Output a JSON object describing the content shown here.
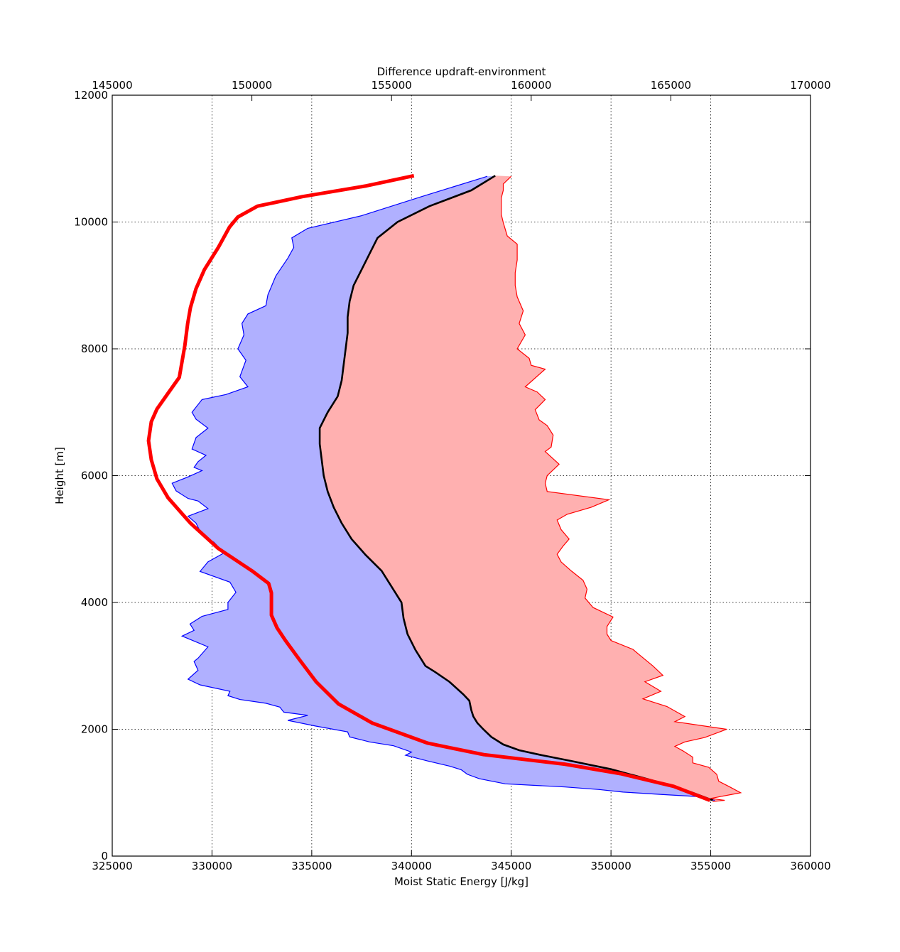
{
  "chart_data": {
    "type": "area",
    "title": "",
    "xlabel": "Moist Static Energy [J/kg]",
    "ylabel": "Height [m]",
    "x2label": "Difference updraft-environment",
    "xlim": [
      325000,
      360000
    ],
    "x2lim": [
      145000,
      170000
    ],
    "ylim": [
      0,
      12000
    ],
    "xticks": [
      325000,
      330000,
      335000,
      340000,
      345000,
      350000,
      355000,
      360000
    ],
    "x2ticks": [
      145000,
      150000,
      155000,
      160000,
      165000,
      170000
    ],
    "yticks": [
      0,
      2000,
      4000,
      6000,
      8000,
      10000,
      12000
    ],
    "grid": true,
    "colors": {
      "lower_fill": "#b0b0ff",
      "lower_edge": "#0000ff",
      "upper_fill": "#ffb0b0",
      "upper_edge": "#ff0000",
      "mean_line": "#000000",
      "difference_line": "#ff0000"
    },
    "series": [
      {
        "role": "lower-bound",
        "x": [
          343800,
          340500,
          337500,
          334800,
          334000,
          334100,
          333800,
          333200,
          332800,
          332700,
          331800,
          331500,
          331600,
          331300,
          331700,
          331400,
          331800,
          330700,
          329500,
          329000,
          329200,
          329800,
          329200,
          329000,
          329700,
          329300,
          329100,
          329500,
          328800,
          328000,
          328200,
          328800,
          329300,
          329800,
          328800,
          329200,
          329500,
          330100,
          330600,
          329800,
          329400,
          330900,
          331200,
          330800,
          330800,
          329500,
          328900,
          329100,
          328500,
          329800,
          329300,
          329100,
          329300,
          328800,
          329400,
          330900,
          330800,
          331400,
          332700,
          333400,
          333600,
          334800,
          333800,
          335200,
          336800,
          336900,
          337900,
          339100,
          340000,
          339700,
          340800,
          341900,
          342500,
          342800,
          343400,
          344700,
          347700,
          349400,
          350600,
          351600,
          352600,
          354300,
          355200
        ],
        "y": [
          10720,
          10400,
          10100,
          9900,
          9750,
          9600,
          9430,
          9150,
          8850,
          8680,
          8550,
          8400,
          8220,
          8000,
          7820,
          7560,
          7400,
          7280,
          7200,
          7000,
          6890,
          6750,
          6600,
          6420,
          6320,
          6220,
          6130,
          6080,
          5980,
          5880,
          5760,
          5640,
          5600,
          5480,
          5360,
          5250,
          5060,
          4950,
          4780,
          4640,
          4490,
          4320,
          4160,
          4000,
          3890,
          3780,
          3660,
          3560,
          3470,
          3300,
          3120,
          3070,
          2930,
          2790,
          2700,
          2600,
          2530,
          2470,
          2410,
          2350,
          2270,
          2220,
          2140,
          2050,
          1960,
          1880,
          1800,
          1740,
          1640,
          1590,
          1500,
          1420,
          1360,
          1290,
          1220,
          1140,
          1090,
          1050,
          1010,
          990,
          970,
          940,
          880
        ]
      },
      {
        "role": "upper-bound",
        "x": [
          345000,
          344600,
          344600,
          344500,
          344500,
          344500,
          344600,
          344800,
          345300,
          345300,
          345200,
          345200,
          345300,
          345600,
          345400,
          345700,
          345300,
          345900,
          346000,
          346700,
          345700,
          346300,
          346700,
          346200,
          346400,
          346800,
          347100,
          347000,
          346700,
          347400,
          346800,
          346700,
          346800,
          349900,
          349000,
          347800,
          347300,
          347500,
          347900,
          347600,
          347300,
          347500,
          348000,
          348600,
          348800,
          348700,
          349100,
          350100,
          349800,
          349800,
          350000,
          351100,
          351400,
          352100,
          352600,
          351700,
          352500,
          351600,
          352800,
          353700,
          353200,
          355800,
          354700,
          353700,
          353200,
          353600,
          354100,
          354100,
          354900,
          355300,
          355400,
          355900,
          356500,
          355000,
          355700,
          355100
        ],
        "y": [
          10720,
          10600,
          10500,
          10380,
          10240,
          10120,
          9990,
          9780,
          9650,
          9400,
          9200,
          9000,
          8820,
          8600,
          8400,
          8220,
          8000,
          7850,
          7740,
          7680,
          7400,
          7320,
          7200,
          7040,
          6880,
          6790,
          6640,
          6450,
          6380,
          6180,
          6000,
          5880,
          5750,
          5620,
          5500,
          5390,
          5300,
          5150,
          5000,
          4890,
          4760,
          4640,
          4500,
          4350,
          4210,
          4070,
          3920,
          3770,
          3620,
          3500,
          3400,
          3260,
          3180,
          3000,
          2850,
          2750,
          2600,
          2480,
          2360,
          2200,
          2120,
          2000,
          1870,
          1800,
          1730,
          1660,
          1560,
          1470,
          1400,
          1290,
          1180,
          1100,
          1000,
          910,
          880,
          860
        ]
      },
      {
        "role": "mean",
        "x": [
          344200,
          343000,
          340900,
          339300,
          338300,
          337900,
          337500,
          337100,
          336900,
          336800,
          336800,
          336700,
          336600,
          336500,
          336300,
          335800,
          335400,
          335400,
          335500,
          335600,
          335800,
          336100,
          336500,
          337000,
          337700,
          338500,
          339000,
          339500,
          339600,
          339800,
          340200,
          340700,
          341200,
          341900,
          342600,
          342900,
          343000,
          343100,
          343300,
          343600,
          344000,
          344600,
          345400,
          346400,
          348000,
          350000,
          352000,
          354000,
          355100
        ],
        "y": [
          10730,
          10500,
          10250,
          10000,
          9750,
          9500,
          9250,
          9000,
          8750,
          8500,
          8250,
          8000,
          7750,
          7500,
          7250,
          7000,
          6750,
          6500,
          6250,
          6000,
          5750,
          5500,
          5250,
          5000,
          4750,
          4500,
          4250,
          4000,
          3750,
          3500,
          3250,
          3000,
          2900,
          2750,
          2550,
          2450,
          2300,
          2200,
          2100,
          2000,
          1880,
          1760,
          1670,
          1600,
          1500,
          1370,
          1200,
          1010,
          880
        ]
      },
      {
        "role": "difference",
        "axis": "top",
        "x": [
          155800,
          154100,
          151800,
          150200,
          149500,
          149200,
          148800,
          148300,
          148000,
          147800,
          147700,
          147600,
          147400,
          147000,
          146600,
          146400,
          146300,
          146400,
          146600,
          147000,
          147800,
          148800,
          150000,
          150600,
          150700,
          150700,
          150700,
          150900,
          151200,
          151700,
          152300,
          153100,
          154300,
          156300,
          158300,
          161200,
          163200,
          165100,
          166400
        ],
        "y": [
          10730,
          10570,
          10400,
          10250,
          10080,
          9920,
          9600,
          9250,
          8950,
          8650,
          8400,
          8050,
          7550,
          7300,
          7050,
          6850,
          6550,
          6250,
          5950,
          5650,
          5250,
          4850,
          4500,
          4300,
          4150,
          4000,
          3800,
          3600,
          3400,
          3100,
          2750,
          2400,
          2100,
          1780,
          1600,
          1450,
          1300,
          1100,
          880
        ]
      }
    ]
  }
}
